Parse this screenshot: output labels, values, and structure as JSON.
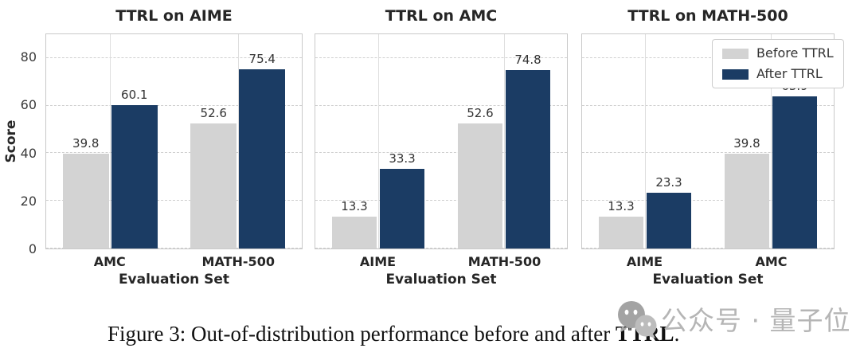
{
  "colors": {
    "before_bar": "#d3d3d3",
    "after_bar": "#1b3c64",
    "plot_border": "#c9c9c9",
    "hgrid": "#cfcfcf",
    "vgrid": "#dedede",
    "title_text": "#262626",
    "tick_text": "#3a3a3a",
    "value_text": "#333333",
    "caption_text": "#111111",
    "watermark": "#b5b5b5",
    "watermark_icon_dark": "#a3a3a3",
    "watermark_icon_light": "#bcbcbc",
    "legend_border": "#cccccc",
    "legend_bg": "#ffffff"
  },
  "legend": {
    "position": "upper-right-of-third-panel",
    "items": [
      {
        "label": "Before TTRL",
        "color": "#d3d3d3"
      },
      {
        "label": "After TTRL",
        "color": "#1b3c64"
      }
    ]
  },
  "chart_data": [
    {
      "type": "bar",
      "title": "TTRL on AIME",
      "categories": [
        "AMC",
        "MATH-500"
      ],
      "series": [
        {
          "name": "Before TTRL",
          "values": [
            39.8,
            52.6
          ]
        },
        {
          "name": "After TTRL",
          "values": [
            60.1,
            75.4
          ]
        }
      ],
      "xlabel": "Evaluation Set",
      "ylabel": "Score",
      "ylim": [
        0,
        90
      ],
      "yticks": [
        0,
        20,
        40,
        60,
        80
      ],
      "grid": "horizontal-dashed-vertical-solid",
      "show_y_tick_labels": true
    },
    {
      "type": "bar",
      "title": "TTRL on AMC",
      "categories": [
        "AIME",
        "MATH-500"
      ],
      "series": [
        {
          "name": "Before TTRL",
          "values": [
            13.3,
            52.6
          ]
        },
        {
          "name": "After TTRL",
          "values": [
            33.3,
            74.8
          ]
        }
      ],
      "xlabel": "Evaluation Set",
      "ylabel": "",
      "ylim": [
        0,
        90
      ],
      "yticks": [
        0,
        20,
        40,
        60,
        80
      ],
      "grid": "horizontal-dashed-vertical-solid",
      "show_y_tick_labels": false
    },
    {
      "type": "bar",
      "title": "TTRL on MATH-500",
      "categories": [
        "AIME",
        "AMC"
      ],
      "series": [
        {
          "name": "Before TTRL",
          "values": [
            13.3,
            39.8
          ]
        },
        {
          "name": "After TTRL",
          "values": [
            23.3,
            63.9
          ]
        }
      ],
      "xlabel": "Evaluation Set",
      "ylabel": "",
      "ylim": [
        0,
        90
      ],
      "yticks": [
        0,
        20,
        40,
        60,
        80
      ],
      "grid": "horizontal-dashed-vertical-solid",
      "show_y_tick_labels": false
    }
  ],
  "caption": {
    "prefix": "Figure 3: Out-of-distribution performance before and after ",
    "bold": "TTRL",
    "suffix": "."
  },
  "watermark": {
    "icon": "wechat-icon",
    "text": "公众号 · 量子位"
  }
}
